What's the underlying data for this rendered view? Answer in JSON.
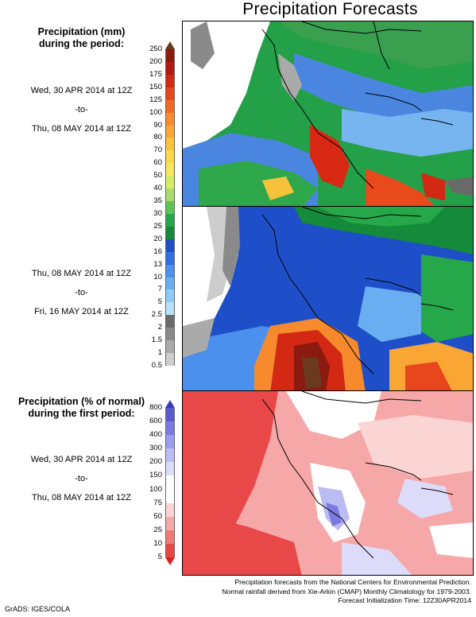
{
  "title": "Precipitation Forecasts",
  "precip_header": [
    "Precipitation (mm)",
    "during the period:"
  ],
  "period1": {
    "start": "Wed, 30 APR 2014 at 12Z",
    "sep": "-to-",
    "end": "Thu, 08 MAY 2014 at 12Z"
  },
  "period2": {
    "start": "Thu, 08 MAY 2014 at 12Z",
    "sep": "-to-",
    "end": "Fri, 16 MAY 2014 at 12Z"
  },
  "pct_header": [
    "Precipitation (% of normal)",
    "during the first period:"
  ],
  "period3": {
    "start": "Wed, 30 APR 2014 at 12Z",
    "sep": "-to-",
    "end": "Thu, 08 MAY 2014 at 12Z"
  },
  "precip_scale": {
    "labels": [
      "250",
      "200",
      "175",
      "150",
      "125",
      "100",
      "90",
      "80",
      "70",
      "60",
      "50",
      "40",
      "35",
      "30",
      "25",
      "20",
      "16",
      "13",
      "10",
      "7",
      "5",
      "2.5",
      "2",
      "1.5",
      "1",
      "0.5"
    ],
    "colors": [
      "#6b3a1e",
      "#8b1a10",
      "#b01a10",
      "#d22814",
      "#e8461c",
      "#f26a22",
      "#f68a2c",
      "#f9a634",
      "#fbc23c",
      "#fbd948",
      "#f5e85a",
      "#d8ec62",
      "#a9dc6a",
      "#5dc357",
      "#26a84a",
      "#158a3a",
      "#1f4fc8",
      "#2f6fe0",
      "#4a90ec",
      "#6aaef2",
      "#8ecaf7",
      "#b6e2fb",
      "#6a6a6a",
      "#8a8a8a",
      "#aaaaaa",
      "#cdcdcd",
      "#ffffff"
    ]
  },
  "pct_scale": {
    "labels": [
      "800",
      "600",
      "400",
      "300",
      "200",
      "150",
      "100",
      "75",
      "50",
      "25",
      "10",
      "5"
    ],
    "colors": [
      "#3a3ab8",
      "#5a5ad0",
      "#7a7ae0",
      "#9c9cec",
      "#bcbcf4",
      "#dcdcfa",
      "#ffffff",
      "#ffffff",
      "#fbd4d4",
      "#f6a8a8",
      "#f07878",
      "#e84848",
      "#dc2020"
    ]
  },
  "footer": [
    "Precipitation forecasts from the National Centers for Environmental Prediction.",
    "Normal rainfall derived from Xie-Arkin (CMAP) Monthly Climatology for 1979-2003.",
    "Forecast Initialization Time: 12Z30APR2014"
  ],
  "credit": "GrADS: IGES/COLA"
}
